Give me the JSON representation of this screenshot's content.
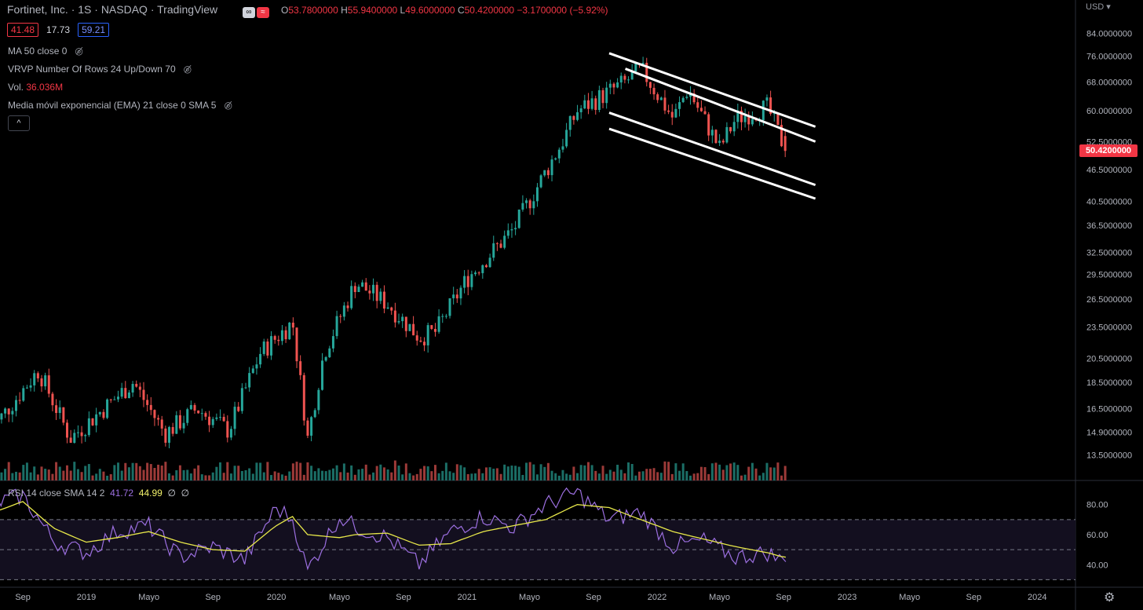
{
  "header": {
    "title": "Fortinet, Inc. · 1S · NASDAQ · TradingView",
    "ohlc": {
      "o_label": "O",
      "o": "53.7800000",
      "h_label": "H",
      "h": "55.9400000",
      "l_label": "L",
      "l": "49.6000000",
      "c_label": "C",
      "c": "50.4200000",
      "change": "−3.1700000 (−5.92%)"
    },
    "toggle_a": "∞",
    "toggle_b": "≈",
    "box_red": "41.48",
    "box_plain": "17.73",
    "box_blue": "59.21"
  },
  "indicators": {
    "ma": "MA 50 close 0",
    "vrvp": "VRVP Number Of Rows 24 Up/Down 70",
    "vol_label": "Vol.",
    "vol_value": "36.036M",
    "ema": "Media móvil exponencial (EMA) 21 close 0 SMA 5",
    "collapse": "^",
    "eye_icon": "eye-slash-icon"
  },
  "rsi": {
    "label": "RSI 14 close SMA 14 2",
    "v1": "41.72",
    "v2": "44.99",
    "v3": "∅",
    "v4": "∅"
  },
  "axis": {
    "currency": "USD ▾",
    "last_price": "50.4200000",
    "settings_icon": "gear-icon"
  },
  "colors": {
    "up": "#26a69a",
    "down": "#ef5350",
    "rsi": "#9c6fe0",
    "rsi_ma": "#e8e84a",
    "channel": "#ffffff"
  },
  "chart_data": {
    "type": "candlestick",
    "scale": "log",
    "ylim": [
      12.5,
      90
    ],
    "y_ticks": [
      "84.0000000",
      "76.0000000",
      "68.0000000",
      "60.0000000",
      "52.5000000",
      "46.5000000",
      "40.5000000",
      "36.5000000",
      "32.5000000",
      "29.5000000",
      "26.5000000",
      "23.5000000",
      "20.5000000",
      "18.5000000",
      "16.5000000",
      "14.9000000",
      "13.5000000"
    ],
    "y_tick_values": [
      84,
      76,
      68,
      60,
      52.5,
      46.5,
      40.5,
      36.5,
      32.5,
      29.5,
      26.5,
      23.5,
      20.5,
      18.5,
      16.5,
      14.9,
      13.5
    ],
    "x_ticks": [
      "Sep",
      "2019",
      "Mayo",
      "Sep",
      "2020",
      "Mayo",
      "Sep",
      "2021",
      "Mayo",
      "Sep",
      "2022",
      "Mayo",
      "Sep",
      "2023",
      "Mayo",
      "Sep",
      "2024"
    ],
    "x_tick_dates": [
      "2018-09",
      "2019-01",
      "2019-05",
      "2019-09",
      "2020-01",
      "2020-05",
      "2020-09",
      "2021-01",
      "2021-05",
      "2021-09",
      "2022-01",
      "2022-05",
      "2022-09",
      "2023-01",
      "2023-05",
      "2023-09",
      "2024-01"
    ],
    "price_path": [
      [
        "2018-07",
        15.0
      ],
      [
        "2018-10",
        19.5
      ],
      [
        "2018-12",
        14.5
      ],
      [
        "2019-04",
        18.5
      ],
      [
        "2019-06",
        14.8
      ],
      [
        "2019-08",
        16.5
      ],
      [
        "2019-10",
        15.0
      ],
      [
        "2019-12",
        21.0
      ],
      [
        "2020-02",
        24.0
      ],
      [
        "2020-03",
        14.5
      ],
      [
        "2020-04",
        21.0
      ],
      [
        "2020-06",
        28.5
      ],
      [
        "2020-08",
        26.0
      ],
      [
        "2020-10",
        22.5
      ],
      [
        "2020-11",
        23.0
      ],
      [
        "2021-01",
        29.0
      ],
      [
        "2021-04",
        36.0
      ],
      [
        "2021-07",
        52.0
      ],
      [
        "2021-08",
        60.0
      ],
      [
        "2021-11",
        68.0
      ],
      [
        "2021-12",
        72.0
      ],
      [
        "2022-02",
        58.0
      ],
      [
        "2022-03",
        66.0
      ],
      [
        "2022-05",
        51.0
      ],
      [
        "2022-06",
        58.0
      ],
      [
        "2022-08",
        61.0
      ],
      [
        "2022-09",
        50.42
      ]
    ],
    "last_close": 50.42,
    "channel_lines": [
      {
        "from": [
          "2021-10",
          77.0
        ],
        "to": [
          "2022-11",
          56.0
        ]
      },
      {
        "from": [
          "2021-11",
          72.0
        ],
        "to": [
          "2022-11",
          52.5
        ]
      },
      {
        "from": [
          "2021-10",
          59.5
        ],
        "to": [
          "2022-11",
          43.5
        ]
      },
      {
        "from": [
          "2021-10",
          55.5
        ],
        "to": [
          "2022-11",
          41.0
        ]
      }
    ],
    "rsi": {
      "ylim": [
        25,
        95
      ],
      "ticks": [
        "80.00",
        "60.00",
        "40.00"
      ],
      "tick_values": [
        80,
        60,
        40
      ],
      "bands": [
        70,
        50,
        30
      ],
      "rsi_path": [
        [
          "2018-07",
          80
        ],
        [
          "2018-09",
          86
        ],
        [
          "2018-11",
          55
        ],
        [
          "2019-01",
          48
        ],
        [
          "2019-03",
          62
        ],
        [
          "2019-05",
          66
        ],
        [
          "2019-07",
          45
        ],
        [
          "2019-09",
          52
        ],
        [
          "2019-11",
          43
        ],
        [
          "2020-01",
          78
        ],
        [
          "2020-02",
          70
        ],
        [
          "2020-03",
          36
        ],
        [
          "2020-05",
          72
        ],
        [
          "2020-06",
          65
        ],
        [
          "2020-08",
          58
        ],
        [
          "2020-10",
          40
        ],
        [
          "2020-12",
          62
        ],
        [
          "2021-02",
          72
        ],
        [
          "2021-04",
          65
        ],
        [
          "2021-06",
          80
        ],
        [
          "2021-08",
          88
        ],
        [
          "2021-10",
          70
        ],
        [
          "2021-12",
          75
        ],
        [
          "2022-02",
          52
        ],
        [
          "2022-04",
          56
        ],
        [
          "2022-06",
          45
        ],
        [
          "2022-08",
          48
        ],
        [
          "2022-09",
          42
        ]
      ],
      "ma_path": [
        [
          "2018-07",
          74
        ],
        [
          "2018-09",
          82
        ],
        [
          "2018-11",
          64
        ],
        [
          "2019-01",
          55
        ],
        [
          "2019-03",
          58
        ],
        [
          "2019-05",
          62
        ],
        [
          "2019-07",
          55
        ],
        [
          "2019-09",
          50
        ],
        [
          "2019-11",
          49
        ],
        [
          "2020-01",
          66
        ],
        [
          "2020-02",
          72
        ],
        [
          "2020-03",
          60
        ],
        [
          "2020-05",
          58
        ],
        [
          "2020-06",
          60
        ],
        [
          "2020-08",
          61
        ],
        [
          "2020-10",
          53
        ],
        [
          "2020-12",
          54
        ],
        [
          "2021-02",
          62
        ],
        [
          "2021-04",
          66
        ],
        [
          "2021-06",
          70
        ],
        [
          "2021-08",
          80
        ],
        [
          "2021-10",
          78
        ],
        [
          "2021-12",
          70
        ],
        [
          "2022-02",
          62
        ],
        [
          "2022-04",
          57
        ],
        [
          "2022-06",
          52
        ],
        [
          "2022-08",
          48
        ],
        [
          "2022-09",
          45
        ]
      ]
    }
  }
}
